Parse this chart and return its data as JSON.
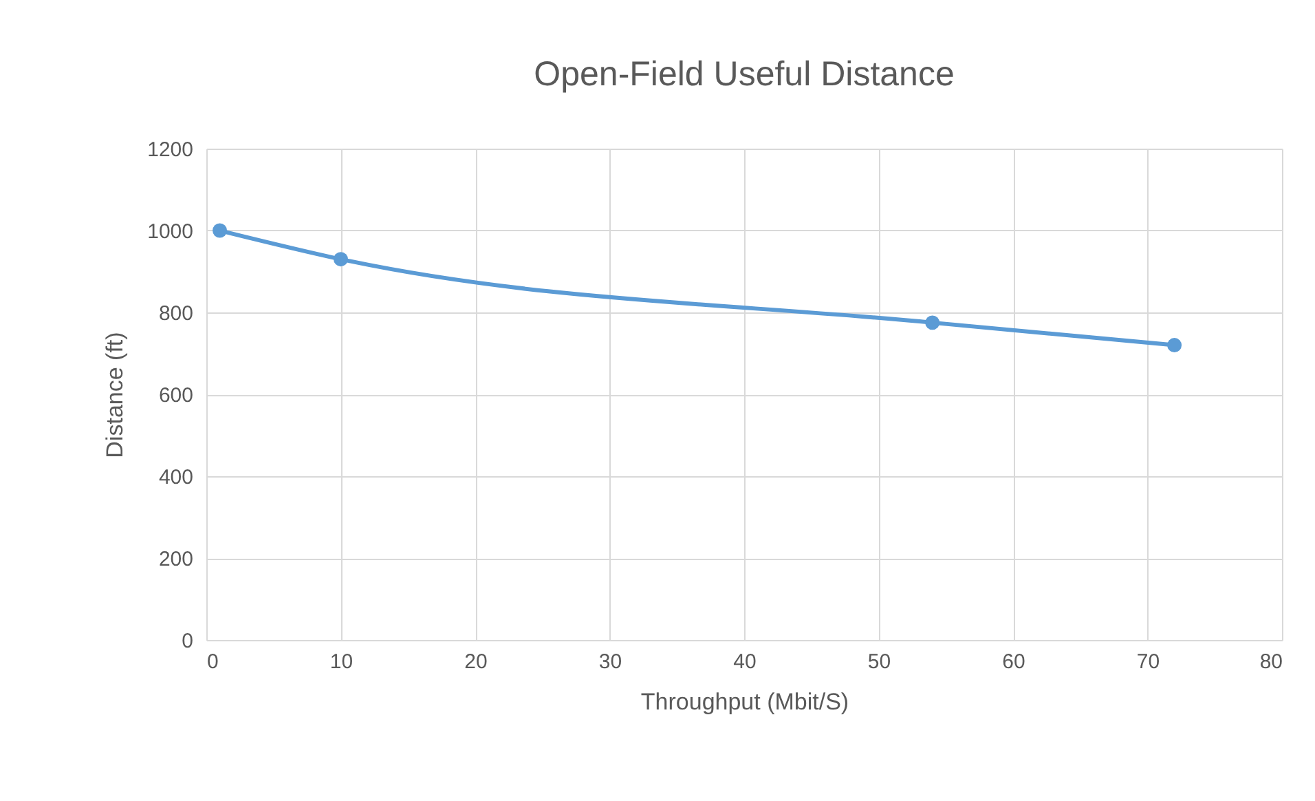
{
  "chart_data": {
    "type": "line",
    "title": "Open-Field Useful Distance",
    "xlabel": "Throughput (Mbit/S)",
    "ylabel": "Distance (ft)",
    "x": [
      1,
      10,
      54,
      72
    ],
    "series": [
      {
        "color": "#5b9bd5",
        "values": [
          1000,
          930,
          775,
          720
        ]
      }
    ],
    "xlim": [
      0,
      80
    ],
    "xticks": [
      0,
      10,
      20,
      30,
      40,
      50,
      60,
      70,
      80
    ],
    "ylim": [
      0,
      1200
    ],
    "yticks": [
      0,
      200,
      400,
      600,
      800,
      1000,
      1200
    ],
    "grid": true,
    "marker": "circle",
    "line_style": "solid"
  }
}
